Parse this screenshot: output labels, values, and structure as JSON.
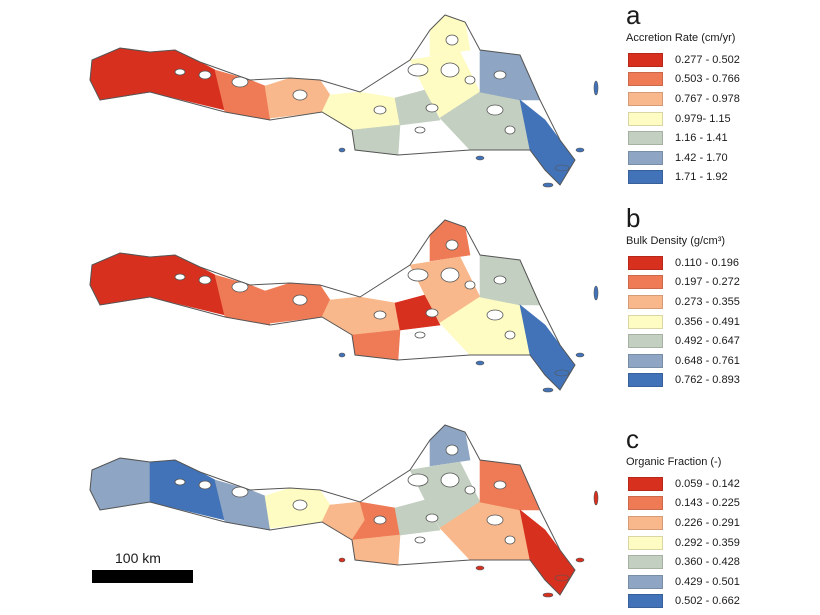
{
  "palette_note_colors": {
    "diverging": [
      "#d7301f",
      "#ef7b56",
      "#f8b88b",
      "#fefcc2",
      "#c3cfc0",
      "#8ea6c4",
      "#4273b8"
    ],
    "coast_outline": "#555555"
  },
  "panels": [
    {
      "letter": "a",
      "title": "Accretion Rate (cm/yr)",
      "classes": [
        {
          "label": "0.277 - 0.502",
          "color": "#d7301f"
        },
        {
          "label": "0.503 - 0.766",
          "color": "#ef7b56"
        },
        {
          "label": "0.767 - 0.978",
          "color": "#f8b88b"
        },
        {
          "label": "0.979- 1.15",
          "color": "#fefcc2"
        },
        {
          "label": "1.16 - 1.41",
          "color": "#c3cfc0"
        },
        {
          "label": "1.42 - 1.70",
          "color": "#8ea6c4"
        },
        {
          "label": "1.71 - 1.92",
          "color": "#4273b8"
        }
      ],
      "region_classes": [
        0,
        0,
        1,
        2,
        3,
        3,
        4,
        4,
        3,
        3,
        4,
        5,
        6
      ]
    },
    {
      "letter": "b",
      "title": "Bulk Density (g/cm³)",
      "classes": [
        {
          "label": "0.110 - 0.196",
          "color": "#d7301f"
        },
        {
          "label": "0.197 - 0.272",
          "color": "#ef7b56"
        },
        {
          "label": "0.273 - 0.355",
          "color": "#f8b88b"
        },
        {
          "label": "0.356 - 0.491",
          "color": "#fefcc2"
        },
        {
          "label": "0.492 - 0.647",
          "color": "#c3cfc0"
        },
        {
          "label": "0.648 - 0.761",
          "color": "#8ea6c4"
        },
        {
          "label": "0.762 - 0.893",
          "color": "#4273b8"
        }
      ],
      "region_classes": [
        0,
        0,
        1,
        1,
        2,
        2,
        1,
        0,
        1,
        2,
        3,
        4,
        6
      ]
    },
    {
      "letter": "c",
      "title": "Organic Fraction (-)",
      "classes": [
        {
          "label": "0.059 - 0.142",
          "color": "#d7301f"
        },
        {
          "label": "0.143 - 0.225",
          "color": "#ef7b56"
        },
        {
          "label": "0.226 - 0.291",
          "color": "#f8b88b"
        },
        {
          "label": "0.292 - 0.359",
          "color": "#fefcc2"
        },
        {
          "label": "0.360 - 0.428",
          "color": "#c3cfc0"
        },
        {
          "label": "0.429 - 0.501",
          "color": "#8ea6c4"
        },
        {
          "label": "0.502 - 0.662",
          "color": "#4273b8"
        }
      ],
      "region_classes": [
        5,
        6,
        5,
        3,
        2,
        1,
        2,
        4,
        5,
        4,
        2,
        1,
        0
      ]
    }
  ],
  "scale_bar": {
    "label": "100 km"
  }
}
